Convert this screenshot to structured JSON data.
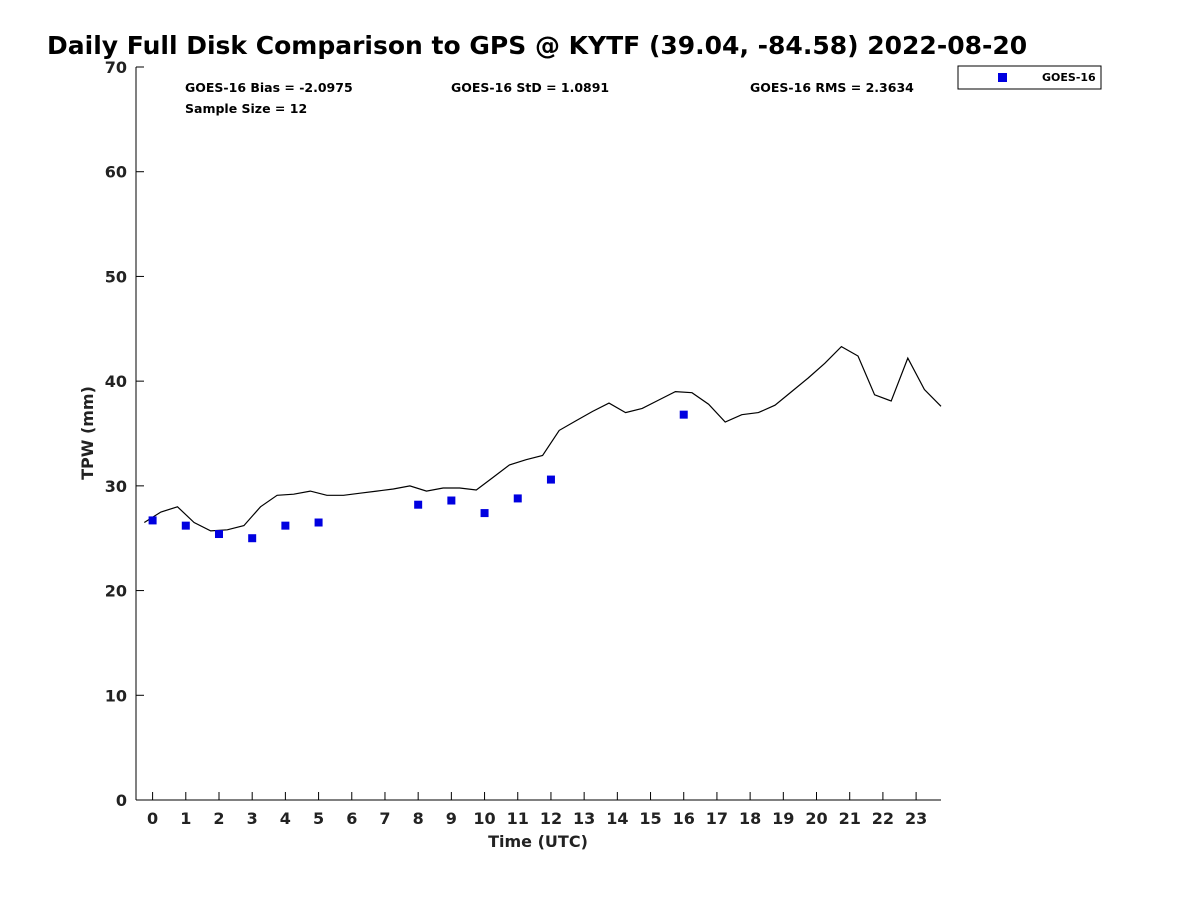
{
  "chart_data": {
    "type": "line+scatter",
    "title": "Daily Full Disk Comparison to GPS @ KYTF (39.04, -84.58) 2022-08-20",
    "xlabel": "Time (UTC)",
    "ylabel": "TPW (mm)",
    "xlim": [
      -0.5,
      23.75
    ],
    "ylim": [
      0,
      70
    ],
    "x_ticks": [
      0,
      1,
      2,
      3,
      4,
      5,
      6,
      7,
      8,
      9,
      10,
      11,
      12,
      13,
      14,
      15,
      16,
      17,
      18,
      19,
      20,
      21,
      22,
      23
    ],
    "y_ticks": [
      0,
      10,
      20,
      30,
      40,
      50,
      60,
      70
    ],
    "grid": false,
    "legend_position": "top-right",
    "stats": {
      "bias": "GOES-16 Bias = -2.0975",
      "std": "GOES-16 StD = 1.0891",
      "rms": "GOES-16 RMS = 2.3634",
      "sample_size": "Sample Size = 12"
    },
    "series": [
      {
        "name": "GOES-16",
        "kind": "scatter",
        "color": "#0000e0",
        "points": [
          [
            0,
            26.7
          ],
          [
            1,
            26.2
          ],
          [
            2,
            25.4
          ],
          [
            3,
            25.0
          ],
          [
            4,
            26.2
          ],
          [
            5,
            26.5
          ],
          [
            8,
            28.2
          ],
          [
            9,
            28.6
          ],
          [
            10,
            27.4
          ],
          [
            11,
            28.8
          ],
          [
            12,
            30.6
          ],
          [
            16,
            36.8
          ]
        ]
      },
      {
        "kind": "line",
        "color": "#000000",
        "points": [
          [
            -0.25,
            26.5
          ],
          [
            0.25,
            27.5
          ],
          [
            0.75,
            28.0
          ],
          [
            1.25,
            26.5
          ],
          [
            1.75,
            25.7
          ],
          [
            2.25,
            25.8
          ],
          [
            2.75,
            26.2
          ],
          [
            3.25,
            28.0
          ],
          [
            3.75,
            29.1
          ],
          [
            4.25,
            29.2
          ],
          [
            4.75,
            29.5
          ],
          [
            5.25,
            29.1
          ],
          [
            5.75,
            29.1
          ],
          [
            6.25,
            29.3
          ],
          [
            6.75,
            29.5
          ],
          [
            7.25,
            29.7
          ],
          [
            7.75,
            30.0
          ],
          [
            8.25,
            29.5
          ],
          [
            8.75,
            29.8
          ],
          [
            9.25,
            29.8
          ],
          [
            9.75,
            29.6
          ],
          [
            10.25,
            30.8
          ],
          [
            10.75,
            32.0
          ],
          [
            11.25,
            32.5
          ],
          [
            11.75,
            32.9
          ],
          [
            12.25,
            35.3
          ],
          [
            12.75,
            36.2
          ],
          [
            13.25,
            37.1
          ],
          [
            13.75,
            37.9
          ],
          [
            14.25,
            37.0
          ],
          [
            14.75,
            37.4
          ],
          [
            15.25,
            38.2
          ],
          [
            15.75,
            39.0
          ],
          [
            16.25,
            38.9
          ],
          [
            16.75,
            37.8
          ],
          [
            17.25,
            36.1
          ],
          [
            17.75,
            36.8
          ],
          [
            18.25,
            37.0
          ],
          [
            18.75,
            37.7
          ],
          [
            19.25,
            39.0
          ],
          [
            19.75,
            40.3
          ],
          [
            20.25,
            41.7
          ],
          [
            20.75,
            43.3
          ],
          [
            21.25,
            42.4
          ],
          [
            21.75,
            38.7
          ],
          [
            22.25,
            38.1
          ],
          [
            22.75,
            42.2
          ],
          [
            23.25,
            39.2
          ],
          [
            23.75,
            37.6
          ]
        ]
      }
    ]
  }
}
